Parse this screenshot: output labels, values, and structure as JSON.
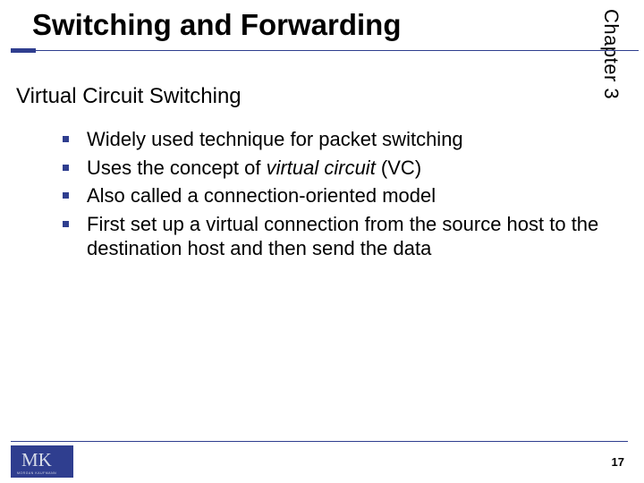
{
  "colors": {
    "accent": "#2f3e8f",
    "rule": "#2f3e8f",
    "bullet_square": "#2f3e8f",
    "footer_rule": "#2f3e8f",
    "logo_bg": "#2f3e8f",
    "logo_fg": "#d6dbe8"
  },
  "side_label": "Chapter 3",
  "title": "Switching and Forwarding",
  "subtitle": "Virtual Circuit Switching",
  "bullets": [
    {
      "text": "Widely used technique for packet switching"
    },
    {
      "text_html": "Uses the concept of <span class=\"italic\">virtual circuit</span> (VC)"
    },
    {
      "text": "Also called a connection-oriented model"
    },
    {
      "text": "First set up a virtual connection from the source host to the destination host and then send the data"
    }
  ],
  "page_number": "17",
  "logo_text": "MK",
  "logo_subtext": "MORGAN KAUFMANN"
}
